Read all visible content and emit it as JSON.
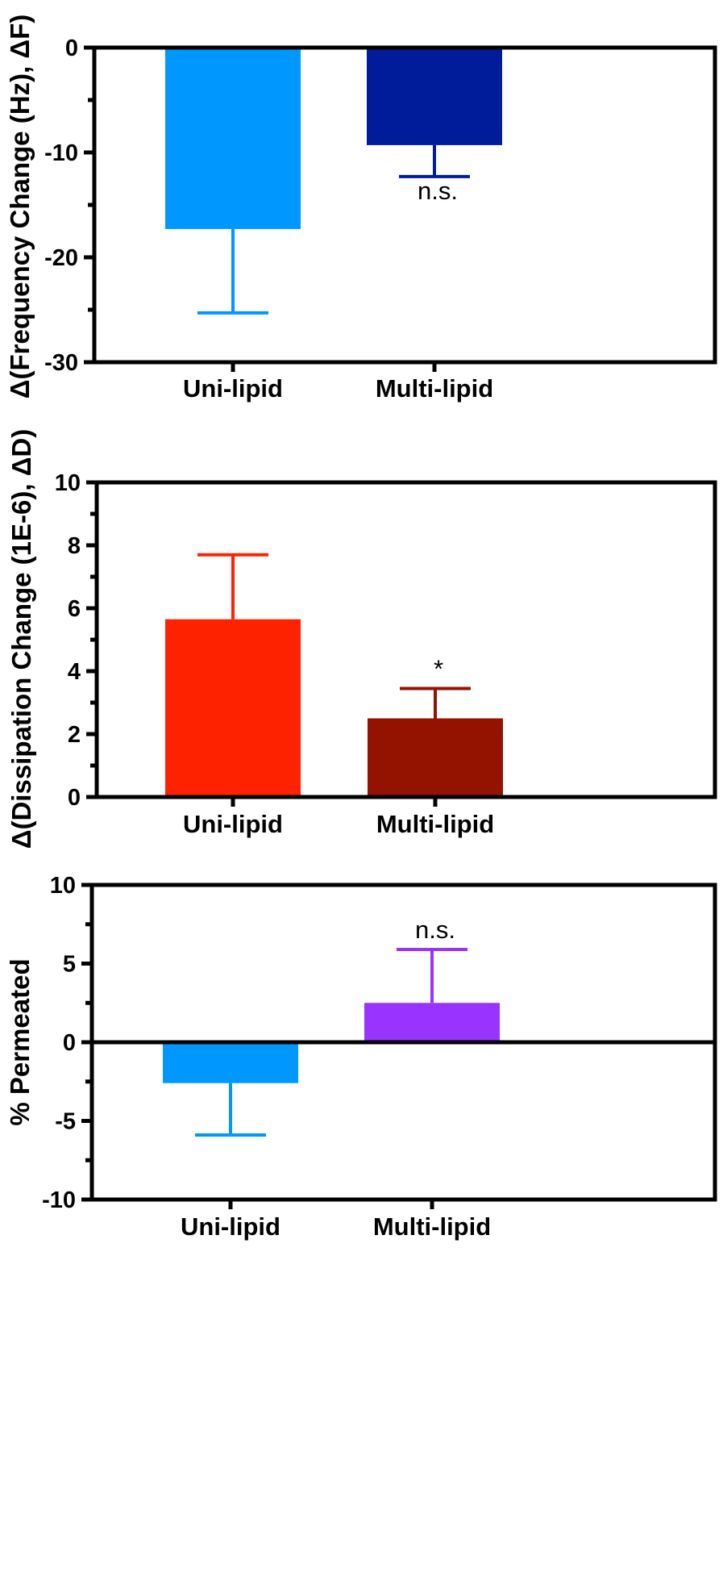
{
  "chart_data": [
    {
      "type": "bar",
      "title": "",
      "xlabel": "",
      "ylabel": "Δ(Frequency Change (Hz), ΔF)",
      "categories": [
        "Uni-lipid",
        "Multi-lipid"
      ],
      "values": [
        -17.3,
        -9.3
      ],
      "errors": [
        8.0,
        3.0
      ],
      "colors": [
        "#0098ff",
        "#001c9a"
      ],
      "ylim": [
        -30,
        0
      ],
      "yticks": [
        0,
        -10,
        -20,
        -30
      ],
      "tick_labels": [
        "0",
        "-10",
        "-20",
        "-30"
      ],
      "annotations": [
        {
          "category": "Multi-lipid",
          "text": "n.s."
        }
      ]
    },
    {
      "type": "bar",
      "title": "",
      "xlabel": "",
      "ylabel": "Δ(Dissipation Change (1E-6), ΔD)",
      "categories": [
        "Uni-lipid",
        "Multi-lipid"
      ],
      "values": [
        5.65,
        2.5
      ],
      "errors": [
        2.05,
        0.95
      ],
      "colors": [
        "#ff2200",
        "#941200"
      ],
      "ylim": [
        0,
        10
      ],
      "yticks": [
        0,
        2,
        4,
        6,
        8,
        10
      ],
      "tick_labels": [
        "0",
        "2",
        "4",
        "6",
        "8",
        "10"
      ],
      "annotations": [
        {
          "category": "Multi-lipid",
          "text": "*"
        }
      ]
    },
    {
      "type": "bar",
      "title": "",
      "xlabel": "",
      "ylabel": "% Permeated",
      "categories": [
        "Uni-lipid",
        "Multi-lipid"
      ],
      "values": [
        -2.6,
        2.5
      ],
      "errors": [
        3.3,
        3.4
      ],
      "colors": [
        "#0098ff",
        "#9933ff"
      ],
      "ylim": [
        -10,
        10
      ],
      "yticks": [
        10,
        5,
        0,
        -5,
        -10
      ],
      "tick_labels": [
        "10",
        "5",
        "0",
        "-5",
        "-10"
      ],
      "annotations": [
        {
          "category": "Multi-lipid",
          "text": "n.s."
        }
      ]
    }
  ]
}
